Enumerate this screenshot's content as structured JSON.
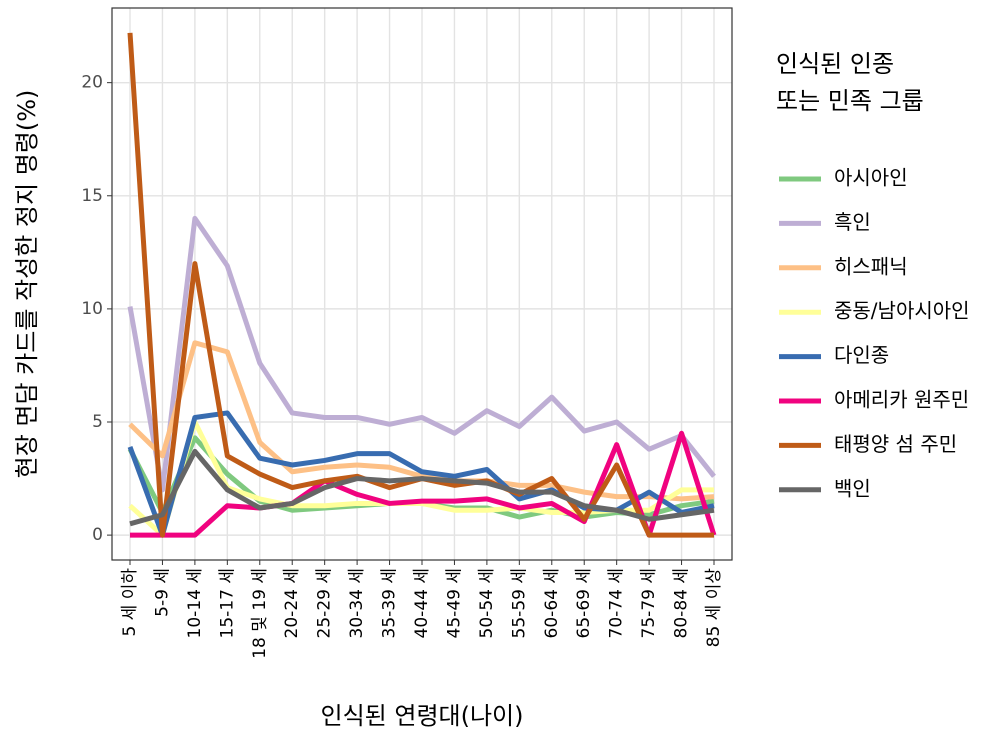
{
  "chart_data": {
    "type": "line",
    "x_label": "인식된 연령대(나이)",
    "y_label": "현장 면담 카드를 작성한 정지 명령(%)",
    "legend_title": [
      "인식된 인종",
      "또는 민족 그룹"
    ],
    "legend_position": "right",
    "grid": true,
    "categories": [
      "5 세 이하",
      "5-9 세",
      "10-14 세",
      "15-17 세",
      "18 및 19 세",
      "20-24 세",
      "25-29 세",
      "30-34 세",
      "35-39 세",
      "40-44 세",
      "45-49 세",
      "50-54 세",
      "55-59 세",
      "60-64 세",
      "65-69 세",
      "70-74 세",
      "75-79 세",
      "80-84 세",
      "85 세 이상"
    ],
    "ylim": [
      -1.1,
      23.3
    ],
    "yticks": [
      0,
      5,
      10,
      15,
      20
    ],
    "series": [
      {
        "name": "아시아인",
        "color": "#7fc97f",
        "values": [
          3.8,
          1.0,
          4.3,
          2.7,
          1.5,
          1.1,
          1.2,
          1.3,
          1.4,
          1.4,
          1.2,
          1.2,
          0.8,
          1.1,
          0.8,
          1.0,
          0.9,
          1.3,
          1.5
        ]
      },
      {
        "name": "흑인",
        "color": "#beaed4",
        "values": [
          10.1,
          2.0,
          14.0,
          11.9,
          7.6,
          5.4,
          5.2,
          5.2,
          4.9,
          5.2,
          4.5,
          5.5,
          4.8,
          6.1,
          4.6,
          5.0,
          3.8,
          4.4,
          2.6
        ]
      },
      {
        "name": "히스패닉",
        "color": "#fdc086",
        "values": [
          4.9,
          3.5,
          8.5,
          8.1,
          4.1,
          2.8,
          3.0,
          3.1,
          3.0,
          2.6,
          2.4,
          2.4,
          2.2,
          2.2,
          1.9,
          1.7,
          1.7,
          1.6,
          1.7
        ]
      },
      {
        "name": "중동/남아시아인",
        "color": "#ffff99",
        "values": [
          1.3,
          0.0,
          5.0,
          2.1,
          1.6,
          1.3,
          1.3,
          1.4,
          1.4,
          1.4,
          1.1,
          1.1,
          1.2,
          1.0,
          1.0,
          1.1,
          1.1,
          2.0,
          2.0
        ]
      },
      {
        "name": "다인종",
        "color": "#386cb0",
        "values": [
          3.9,
          0.0,
          5.2,
          5.4,
          3.4,
          3.1,
          3.3,
          3.6,
          3.6,
          2.8,
          2.6,
          2.9,
          1.6,
          2.0,
          1.2,
          1.1,
          1.9,
          1.0,
          1.3
        ]
      },
      {
        "name": "아메리카 원주민",
        "color": "#f0027f",
        "values": [
          0,
          0,
          0,
          1.3,
          1.2,
          1.4,
          2.4,
          1.8,
          1.4,
          1.5,
          1.5,
          1.6,
          1.2,
          1.4,
          0.6,
          4.0,
          0,
          4.5,
          0
        ]
      },
      {
        "name": "태평양 섬 주민",
        "color": "#bf5b17",
        "values": [
          22.2,
          0.0,
          12.0,
          3.5,
          2.7,
          2.1,
          2.4,
          2.6,
          2.1,
          2.5,
          2.2,
          2.4,
          1.8,
          2.5,
          0.7,
          3.1,
          0,
          0,
          0
        ]
      },
      {
        "name": "백인",
        "color": "#666666",
        "values": [
          0.5,
          0.9,
          3.7,
          2.0,
          1.2,
          1.4,
          2.1,
          2.5,
          2.4,
          2.5,
          2.4,
          2.3,
          1.9,
          1.9,
          1.3,
          1.1,
          0.7,
          0.9,
          1.1
        ]
      }
    ]
  }
}
